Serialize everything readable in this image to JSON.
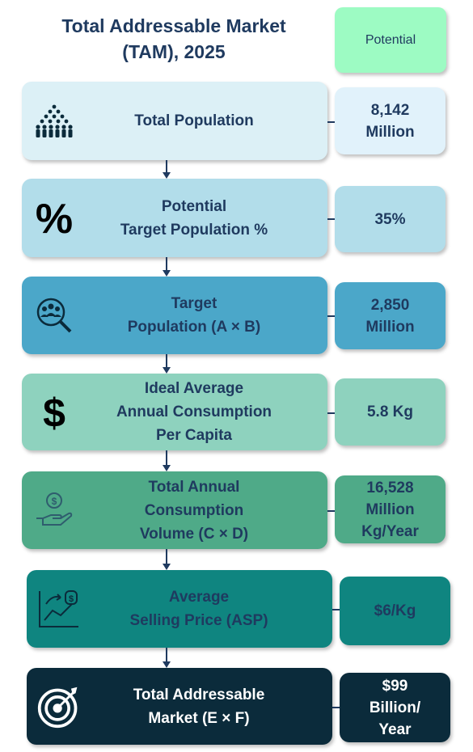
{
  "title": [
    "Total Addressable Market",
    "(TAM), 2025"
  ],
  "legend": "Potential",
  "steps": [
    {
      "label": [
        "Total Population"
      ],
      "value": [
        "8,142",
        "Million"
      ],
      "box_color": "#dcf0f6",
      "value_color": "#e1f2fb",
      "text_color": "#1f3a5f",
      "icon": "people-crowd-icon"
    },
    {
      "label": [
        "Potential",
        "Target Population %"
      ],
      "value": [
        "35%"
      ],
      "box_color": "#b2ddea",
      "value_color": "#b2ddea",
      "text_color": "#1f3a5f",
      "icon": "percent-icon"
    },
    {
      "label": [
        "Target",
        "Population (A × B)"
      ],
      "value": [
        "2,850",
        "Million"
      ],
      "box_color": "#4ba7c9",
      "value_color": "#4ba7c9",
      "text_color": "#1f3a5f",
      "icon": "target-group-search-icon"
    },
    {
      "label": [
        "Ideal Average",
        "Annual Consumption",
        "Per Capita"
      ],
      "value": [
        "5.8 Kg"
      ],
      "box_color": "#8ed2be",
      "value_color": "#8ed2be",
      "text_color": "#1f3a5f",
      "icon": "dollar-icon"
    },
    {
      "label": [
        "Total Annual",
        "Consumption",
        "Volume (C × D)"
      ],
      "value": [
        "16,528",
        "Million",
        "Kg/Year"
      ],
      "box_color": "#4faa88",
      "value_color": "#4faa88",
      "text_color": "#1f3a5f",
      "icon": "money-hand-icon"
    },
    {
      "label": [
        "Average",
        "Selling Price (ASP)"
      ],
      "value": [
        "$6/Kg"
      ],
      "box_color": "#0f8580",
      "value_color": "#0f8580",
      "text_color": "#1f3a5f",
      "icon": "price-growth-icon"
    },
    {
      "label": [
        "Total Addressable",
        "Market (E × F)"
      ],
      "value": [
        "$99",
        "Billion/",
        "Year"
      ],
      "box_color": "#0b2b3b",
      "value_color": "#0b2b3b",
      "text_color": "#ffffff",
      "icon": "target-dart-icon"
    }
  ]
}
